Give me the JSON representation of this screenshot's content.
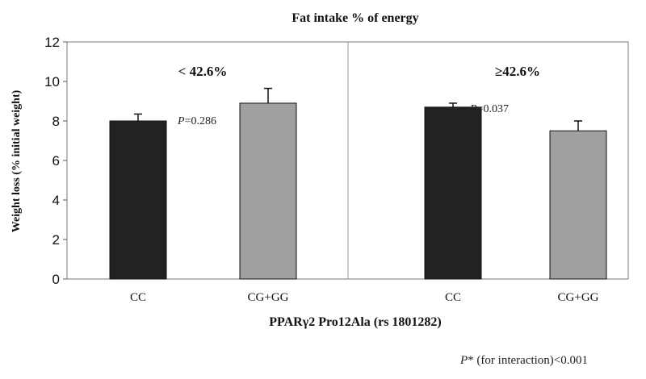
{
  "chart_data": {
    "type": "bar",
    "title": "Fat intake % of energy",
    "ylabel": "Weight loss (% initial weight)",
    "xlabel": "PPARγ2 Pro12Ala (rs 1801282)",
    "ylim": [
      0,
      12
    ],
    "yticks": [
      0,
      2,
      4,
      6,
      8,
      10,
      12
    ],
    "grid": false,
    "groups": [
      {
        "label": "< 42.6%",
        "p_label": "P",
        "p_value": "=0.286",
        "bars": [
          {
            "category": "CC",
            "value": 8.0,
            "error": 0.35,
            "color": "#222222"
          },
          {
            "category": "CG+GG",
            "value": 8.9,
            "error": 0.75,
            "color": "#a0a0a0"
          }
        ]
      },
      {
        "label": "≥42.6%",
        "p_label": "P",
        "p_value": "=0.037",
        "bars": [
          {
            "category": "CC",
            "value": 8.7,
            "error": 0.2,
            "color": "#222222"
          },
          {
            "category": "CG+GG",
            "value": 7.5,
            "error": 0.5,
            "color": "#a0a0a0"
          }
        ]
      }
    ],
    "footnote": {
      "p_label": "P",
      "text": "* (for interaction)<0.001"
    }
  }
}
